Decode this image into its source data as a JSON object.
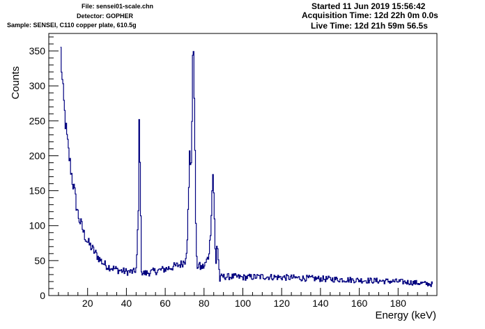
{
  "header": {
    "file": "File: sensei01-scale.chn",
    "detector": "Detector: GOPHER",
    "sample": "Sample: SENSEI, C110 copper plate, 610.5g",
    "started": "Started 11 Jun 2019 15:56:42",
    "acquisition": "Acquisition Time: 12d 22h 0m 0.0s",
    "live": "Live Time: 12d 21h 59m 56.5s"
  },
  "chart_data": {
    "type": "line",
    "xlabel": "Energy (keV)",
    "ylabel": "Counts",
    "xlim": [
      0,
      200
    ],
    "ylim": [
      0,
      375
    ],
    "x_ticks": [
      20,
      40,
      60,
      80,
      100,
      120,
      140,
      160,
      180
    ],
    "y_ticks": [
      0,
      50,
      100,
      150,
      200,
      250,
      300,
      350
    ],
    "grid": false,
    "line_color": "#00007f",
    "series": [
      {
        "x": [
          6,
          6.5,
          7,
          8,
          9,
          10,
          11,
          12,
          13,
          14,
          15,
          16,
          17,
          18,
          19,
          20,
          22,
          24,
          26,
          28,
          30,
          32,
          34,
          36,
          38,
          40,
          42,
          44,
          45,
          46,
          46.5,
          47,
          47.5,
          48,
          50,
          55,
          60,
          65,
          68,
          70,
          71,
          72,
          72.5,
          73,
          73.5,
          74,
          74.5,
          75,
          75.5,
          76,
          76.5,
          77,
          78,
          80,
          82,
          83,
          84,
          84.5,
          85,
          85.5,
          86,
          86.5,
          87,
          87.5,
          88,
          89,
          90,
          95,
          100,
          110,
          120,
          130,
          140,
          150,
          160,
          170,
          180,
          190,
          198
        ],
        "y": [
          350,
          320,
          295,
          260,
          230,
          205,
          185,
          165,
          150,
          130,
          115,
          105,
          98,
          88,
          82,
          76,
          68,
          60,
          52,
          46,
          42,
          40,
          38,
          36,
          35,
          34,
          34,
          34,
          40,
          120,
          278,
          150,
          40,
          32,
          32,
          35,
          38,
          42,
          45,
          50,
          70,
          150,
          215,
          175,
          230,
          330,
          362,
          250,
          120,
          50,
          40,
          45,
          40,
          42,
          55,
          80,
          150,
          180,
          130,
          70,
          45,
          80,
          60,
          40,
          22,
          28,
          27,
          27,
          26,
          27,
          26,
          25,
          24,
          23,
          22,
          21,
          20,
          18,
          16
        ]
      }
    ]
  }
}
